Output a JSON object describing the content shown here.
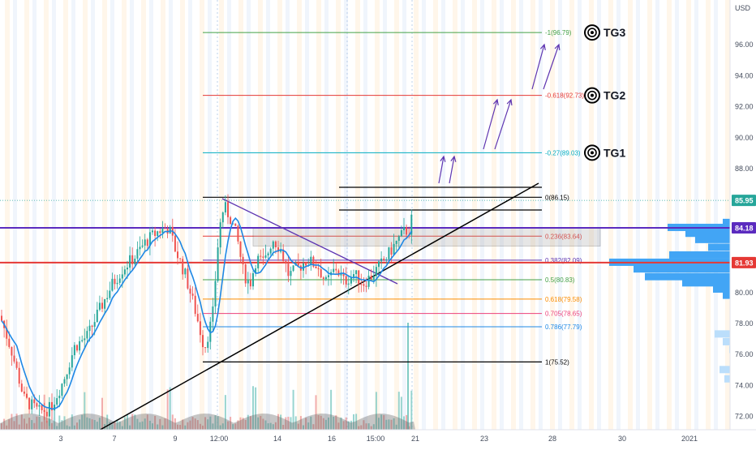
{
  "currency": "USD",
  "price_tags": [
    {
      "value": "85.95",
      "color": "#26a69a"
    },
    {
      "value": "84.18",
      "color": "#5b2bbf"
    },
    {
      "value": "81.93",
      "color": "#e53935"
    }
  ],
  "targets": [
    "TG1",
    "TG2",
    "TG3"
  ],
  "chart_data": {
    "type": "candlestick",
    "yaxis": {
      "ticks": [
        "96.00",
        "94.00",
        "92.00",
        "90.00",
        "88.00",
        "86.00",
        "84.00",
        "82.00",
        "80.00",
        "78.00",
        "76.00",
        "74.00",
        "72.00"
      ],
      "range": [
        71.0,
        98.5
      ],
      "position": "right"
    },
    "xaxis": {
      "ticks": [
        "3",
        "7",
        "9",
        "12:00",
        "14",
        "16",
        "15:00",
        "21",
        "23",
        "28",
        "30",
        "2021"
      ]
    },
    "last_price": 85.95,
    "fib_levels": [
      {
        "label": "-1(96.79)",
        "value": 96.79,
        "color": "#43a047"
      },
      {
        "label": "-0.618(92.73)",
        "value": 92.73,
        "color": "#e53935"
      },
      {
        "label": "-0.27(89.03)",
        "value": 89.03,
        "color": "#00acc1"
      },
      {
        "label": "0(86.15)",
        "value": 86.15,
        "color": "#000000"
      },
      {
        "label": "0.236(83.64)",
        "value": 83.64,
        "color": "#e53935"
      },
      {
        "label": "0.382(82.09)",
        "value": 82.09,
        "color": "#5e35b1"
      },
      {
        "label": "0.5(80.83)",
        "value": 80.83,
        "color": "#43a047"
      },
      {
        "label": "0.618(79.58)",
        "value": 79.58,
        "color": "#fb8c00"
      },
      {
        "label": "0.705(78.65)",
        "value": 78.65,
        "color": "#ec407a"
      },
      {
        "label": "0.786(77.79)",
        "value": 77.79,
        "color": "#1e88e5"
      },
      {
        "label": "1(75.52)",
        "value": 75.52,
        "color": "#000000"
      }
    ],
    "horizontal_lines": [
      {
        "value": 84.18,
        "color": "#5b2bbf"
      },
      {
        "value": 81.93,
        "color": "#e53935"
      }
    ],
    "grid": false
  }
}
